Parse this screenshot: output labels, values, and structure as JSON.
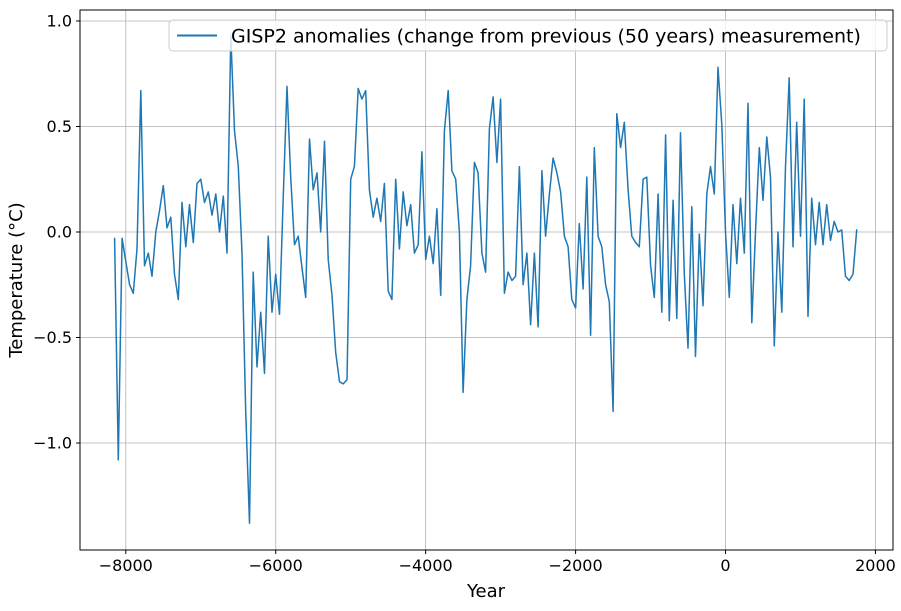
{
  "figure": {
    "background": "#ffffff",
    "grid_color": "#b0b0b0",
    "spine_color": "#000000",
    "legend_edge_color": "#cccccc"
  },
  "chart_data": {
    "type": "line",
    "title": "",
    "xlabel": "Year",
    "ylabel": "Temperature (°C)",
    "xlim": [
      -8611,
      2234
    ],
    "ylim": [
      -1.507,
      1.052
    ],
    "x_ticks": [
      -8000,
      -6000,
      -4000,
      -2000,
      0,
      2000
    ],
    "y_ticks": [
      1.0,
      0.5,
      0.0,
      -0.5,
      -1.0
    ],
    "grid": true,
    "legend": {
      "position": "upper center",
      "entries": [
        "GISP2 anomalies (change from previous (50 years) measurement)"
      ]
    },
    "series": [
      {
        "name": "GISP2 anomalies (change from previous (50 years) measurement)",
        "color": "#1f77b4",
        "line_width": 1.5,
        "x_start": -8150,
        "x_step": 50,
        "values": [
          -0.03,
          -1.08,
          -0.03,
          -0.14,
          -0.25,
          -0.29,
          -0.08,
          0.67,
          -0.16,
          -0.1,
          -0.21,
          0.0,
          0.1,
          0.22,
          0.02,
          0.07,
          -0.2,
          -0.32,
          0.14,
          -0.07,
          0.13,
          -0.05,
          0.23,
          0.25,
          0.14,
          0.19,
          0.08,
          0.18,
          0.0,
          0.17,
          -0.1,
          0.93,
          0.48,
          0.31,
          -0.1,
          -0.85,
          -1.38,
          -0.19,
          -0.64,
          -0.38,
          -0.67,
          -0.02,
          -0.38,
          -0.2,
          -0.39,
          0.16,
          0.69,
          0.26,
          -0.06,
          -0.02,
          -0.17,
          -0.31,
          0.44,
          0.2,
          0.28,
          0.0,
          0.43,
          -0.13,
          -0.3,
          -0.57,
          -0.71,
          -0.72,
          -0.7,
          0.25,
          0.31,
          0.68,
          0.63,
          0.67,
          0.2,
          0.07,
          0.16,
          0.05,
          0.23,
          -0.28,
          -0.32,
          0.25,
          -0.08,
          0.19,
          0.03,
          0.13,
          -0.1,
          -0.06,
          0.38,
          -0.13,
          -0.02,
          -0.15,
          0.11,
          -0.3,
          0.48,
          0.67,
          0.29,
          0.25,
          0.0,
          -0.76,
          -0.32,
          -0.16,
          0.33,
          0.28,
          -0.1,
          -0.19,
          0.49,
          0.64,
          0.33,
          0.63,
          -0.29,
          -0.19,
          -0.23,
          -0.21,
          0.31,
          -0.25,
          -0.1,
          -0.44,
          -0.1,
          -0.45,
          0.29,
          -0.02,
          0.18,
          0.35,
          0.28,
          0.19,
          -0.02,
          -0.07,
          -0.32,
          -0.36,
          0.04,
          -0.27,
          0.26,
          -0.49,
          0.4,
          -0.02,
          -0.07,
          -0.25,
          -0.33,
          -0.85,
          0.56,
          0.4,
          0.52,
          0.2,
          -0.02,
          -0.05,
          -0.07,
          0.25,
          0.26,
          -0.16,
          -0.31,
          0.18,
          -0.38,
          0.46,
          -0.42,
          0.15,
          -0.41,
          0.47,
          -0.2,
          -0.55,
          0.12,
          -0.59,
          -0.01,
          -0.35,
          0.18,
          0.31,
          0.18,
          0.78,
          0.51,
          0.0,
          -0.31,
          0.13,
          -0.15,
          0.16,
          -0.1,
          0.61,
          -0.43,
          0.0,
          0.4,
          0.15,
          0.45,
          0.26,
          -0.54,
          0.0,
          -0.38,
          0.31,
          0.73,
          -0.07,
          0.52,
          -0.02,
          0.63,
          -0.4,
          0.16,
          -0.06,
          0.14,
          -0.06,
          0.13,
          -0.04,
          0.05,
          0.0,
          0.01,
          -0.21,
          -0.23,
          -0.2,
          0.01
        ]
      }
    ]
  }
}
